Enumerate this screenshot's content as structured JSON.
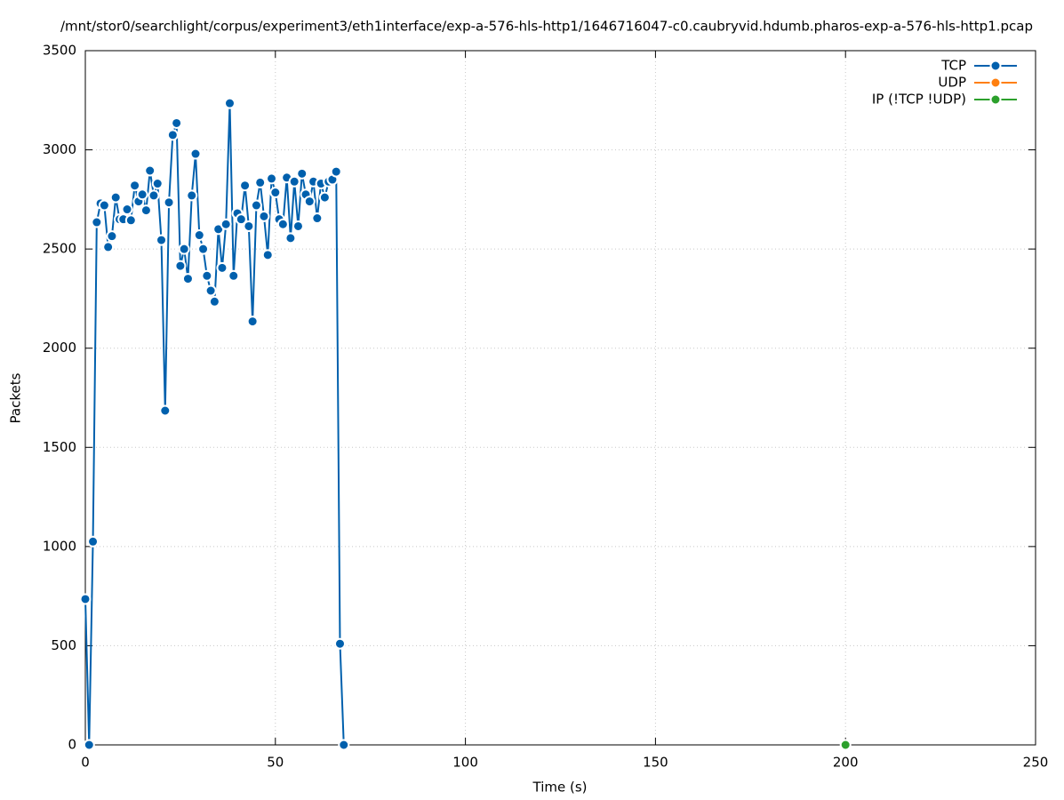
{
  "chart_data": {
    "type": "line",
    "title": "/mnt/stor0/searchlight/corpus/experiment3/eth1interface/exp-a-576-hls-http1/1646716047-c0.caubryvid.hdumb.pharos-exp-a-576-hls-http1.pcap",
    "xlabel": "Time (s)",
    "ylabel": "Packets",
    "xlim": [
      0,
      250
    ],
    "ylim": [
      0,
      3500
    ],
    "xticks": [
      0,
      50,
      100,
      150,
      200,
      250
    ],
    "yticks": [
      0,
      500,
      1000,
      1500,
      2000,
      2500,
      3000,
      3500
    ],
    "grid": true,
    "legend": "top-right",
    "series": [
      {
        "name": "TCP",
        "color": "#0060ad",
        "x": [
          0,
          1,
          2,
          3,
          4,
          5,
          6,
          7,
          8,
          9,
          10,
          11,
          12,
          13,
          14,
          15,
          16,
          17,
          18,
          19,
          20,
          21,
          22,
          23,
          24,
          25,
          26,
          27,
          28,
          29,
          30,
          31,
          32,
          33,
          34,
          35,
          36,
          37,
          38,
          39,
          40,
          41,
          42,
          43,
          44,
          45,
          46,
          47,
          48,
          49,
          50,
          51,
          52,
          53,
          54,
          55,
          56,
          57,
          58,
          59,
          60,
          61,
          62,
          63,
          64,
          65,
          66,
          67,
          68
        ],
        "values": [
          735,
          0,
          1025,
          2635,
          2730,
          2720,
          2510,
          2565,
          2760,
          2650,
          2650,
          2700,
          2645,
          2820,
          2740,
          2775,
          2695,
          2895,
          2770,
          2830,
          2545,
          1685,
          2735,
          3075,
          3135,
          2415,
          2500,
          2350,
          2770,
          2980,
          2570,
          2500,
          2365,
          2290,
          2235,
          2600,
          2405,
          2625,
          3235,
          2365,
          2680,
          2650,
          2820,
          2615,
          2135,
          2720,
          2835,
          2665,
          2470,
          2855,
          2785,
          2650,
          2625,
          2860,
          2555,
          2840,
          2615,
          2880,
          2775,
          2740,
          2840,
          2655,
          2830,
          2760,
          2840,
          2850,
          2890,
          510,
          0
        ]
      },
      {
        "name": "UDP",
        "color": "#ff7f0e",
        "x": [],
        "values": []
      },
      {
        "name": "IP (!TCP  !UDP)",
        "color": "#2ca02c",
        "x": [
          200
        ],
        "values": [
          0
        ]
      }
    ]
  }
}
